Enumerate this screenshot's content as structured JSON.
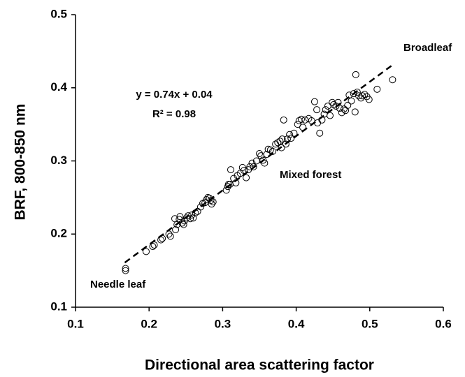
{
  "chart_data": {
    "type": "scatter",
    "xlabel": "Directional area scattering factor",
    "ylabel": "BRF, 800-850 nm",
    "xlim": [
      0.1,
      0.6
    ],
    "xticks": [
      0.1,
      0.2,
      0.3,
      0.4,
      0.5,
      0.6
    ],
    "ylim": [
      0.1,
      0.5
    ],
    "yticks": [
      0.1,
      0.2,
      0.3,
      0.4,
      0.5
    ],
    "annotations": [
      "y = 0.74x + 0.04",
      "R² = 0.98",
      "Broadleaf",
      "Mixed forest",
      "Needle leaf"
    ],
    "trendline": {
      "x": [
        0.167,
        0.532
      ],
      "y": [
        0.161,
        0.432
      ]
    },
    "x": [
      0.168,
      0.168,
      0.196,
      0.205,
      0.207,
      0.216,
      0.218,
      0.227,
      0.229,
      0.236,
      0.238,
      0.235,
      0.241,
      0.242,
      0.245,
      0.247,
      0.248,
      0.251,
      0.253,
      0.256,
      0.258,
      0.26,
      0.263,
      0.266,
      0.27,
      0.273,
      0.276,
      0.278,
      0.28,
      0.282,
      0.284,
      0.285,
      0.287,
      0.305,
      0.307,
      0.308,
      0.31,
      0.311,
      0.315,
      0.318,
      0.32,
      0.324,
      0.327,
      0.329,
      0.332,
      0.335,
      0.337,
      0.34,
      0.342,
      0.346,
      0.35,
      0.352,
      0.355,
      0.357,
      0.36,
      0.362,
      0.365,
      0.368,
      0.372,
      0.375,
      0.378,
      0.38,
      0.381,
      0.383,
      0.386,
      0.388,
      0.391,
      0.393,
      0.397,
      0.402,
      0.404,
      0.407,
      0.409,
      0.412,
      0.417,
      0.421,
      0.425,
      0.428,
      0.429,
      0.432,
      0.435,
      0.438,
      0.44,
      0.443,
      0.446,
      0.449,
      0.451,
      0.454,
      0.457,
      0.459,
      0.462,
      0.465,
      0.467,
      0.47,
      0.472,
      0.475,
      0.478,
      0.48,
      0.481,
      0.483,
      0.485,
      0.488,
      0.49,
      0.493,
      0.496,
      0.499,
      0.51,
      0.531
    ],
    "values": [
      0.15,
      0.153,
      0.176,
      0.183,
      0.185,
      0.192,
      0.194,
      0.2,
      0.197,
      0.206,
      0.213,
      0.221,
      0.22,
      0.224,
      0.215,
      0.213,
      0.218,
      0.222,
      0.225,
      0.221,
      0.226,
      0.222,
      0.229,
      0.231,
      0.237,
      0.242,
      0.243,
      0.247,
      0.25,
      0.249,
      0.246,
      0.241,
      0.244,
      0.26,
      0.265,
      0.268,
      0.268,
      0.288,
      0.276,
      0.27,
      0.28,
      0.283,
      0.291,
      0.287,
      0.277,
      0.288,
      0.292,
      0.297,
      0.292,
      0.3,
      0.31,
      0.307,
      0.301,
      0.297,
      0.309,
      0.316,
      0.315,
      0.313,
      0.323,
      0.325,
      0.327,
      0.318,
      0.33,
      0.356,
      0.323,
      0.33,
      0.336,
      0.331,
      0.338,
      0.35,
      0.355,
      0.357,
      0.346,
      0.356,
      0.358,
      0.355,
      0.381,
      0.37,
      0.352,
      0.338,
      0.356,
      0.364,
      0.37,
      0.375,
      0.362,
      0.38,
      0.377,
      0.375,
      0.38,
      0.372,
      0.366,
      0.371,
      0.369,
      0.376,
      0.39,
      0.382,
      0.392,
      0.367,
      0.418,
      0.394,
      0.389,
      0.386,
      0.389,
      0.391,
      0.388,
      0.384,
      0.398,
      0.411
    ],
    "color": "#000000"
  }
}
